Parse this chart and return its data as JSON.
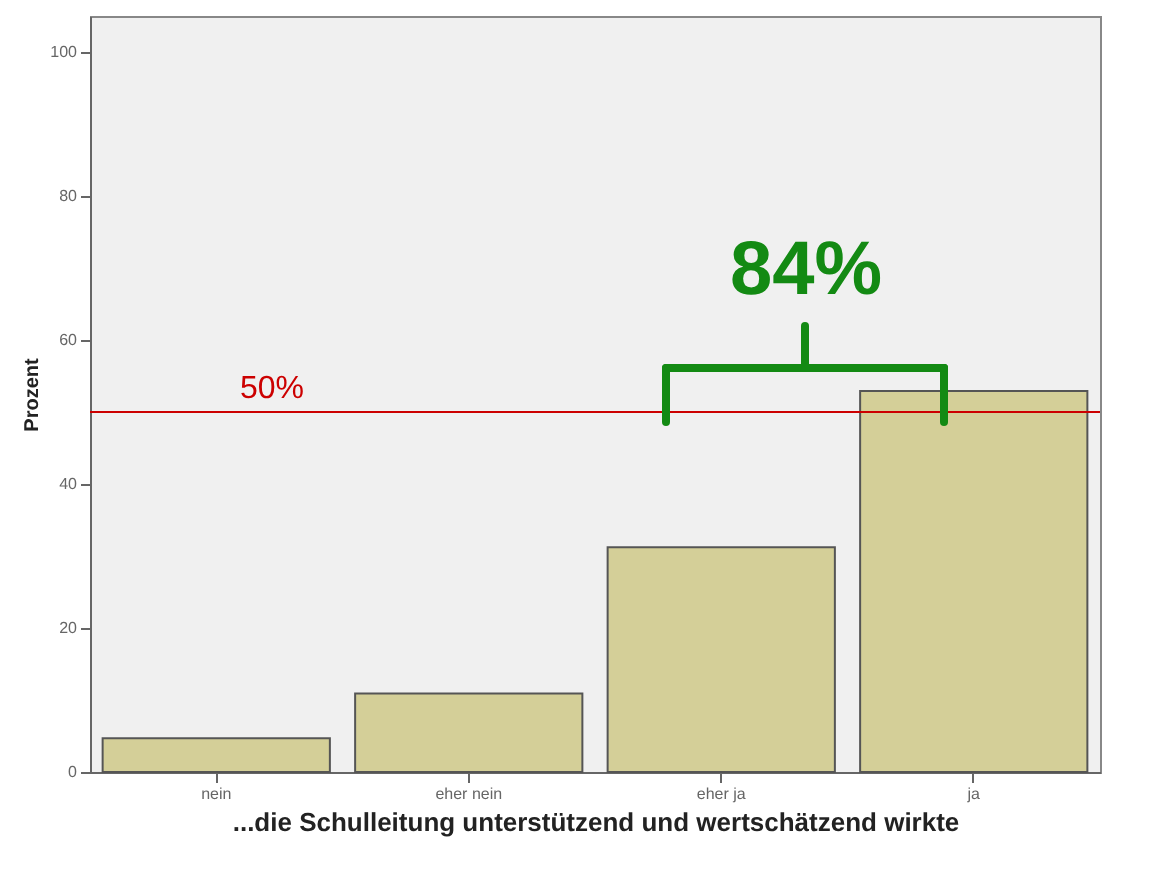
{
  "chart_data": {
    "type": "bar",
    "xlabel": "...die Schulleitung unterstützend und wertschätzend wirkte",
    "ylabel": "Prozent",
    "categories": [
      "nein",
      "eher nein",
      "eher ja",
      "ja"
    ],
    "values": [
      4.7,
      10.9,
      31.2,
      52.9
    ],
    "color": "#d4cf98",
    "ylim": [
      0,
      105
    ],
    "yticks": [
      0,
      20,
      40,
      60,
      80,
      100
    ],
    "grid": false,
    "ref_lines": [
      {
        "axis": "y",
        "value": 50,
        "label": "50%",
        "color": "#cc0000"
      }
    ],
    "annotations": [
      "84%"
    ]
  }
}
